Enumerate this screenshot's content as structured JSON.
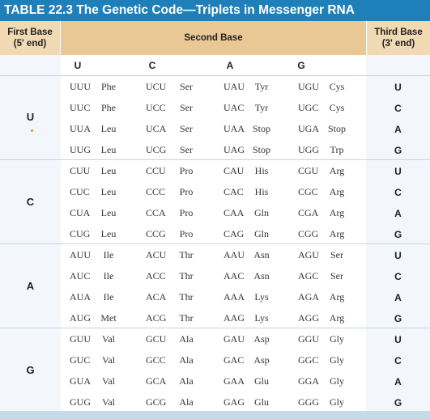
{
  "title": "TABLE 22.3  The Genetic Code—Triplets in Messenger RNA",
  "headers": {
    "first_line1": "First Base",
    "first_line2": "(5' end)",
    "second": "Second Base",
    "third_line1": "Third Base",
    "third_line2": "(3' end)"
  },
  "second_bases": [
    "U",
    "C",
    "A",
    "G"
  ],
  "third_bases": [
    "U",
    "C",
    "A",
    "G"
  ],
  "groups": [
    {
      "first": "U",
      "rows": [
        [
          [
            "UUU",
            "Phe"
          ],
          [
            "UCU",
            "Ser"
          ],
          [
            "UAU",
            "Tyr"
          ],
          [
            "UGU",
            "Cys"
          ]
        ],
        [
          [
            "UUC",
            "Phe"
          ],
          [
            "UCC",
            "Ser"
          ],
          [
            "UAC",
            "Tyr"
          ],
          [
            "UGC",
            "Cys"
          ]
        ],
        [
          [
            "UUA",
            "Leu"
          ],
          [
            "UCA",
            "Ser"
          ],
          [
            "UAA",
            "Stop"
          ],
          [
            "UGA",
            "Stop"
          ]
        ],
        [
          [
            "UUG",
            "Leu"
          ],
          [
            "UCG",
            "Ser"
          ],
          [
            "UAG",
            "Stop"
          ],
          [
            "UGG",
            "Trp"
          ]
        ]
      ]
    },
    {
      "first": "C",
      "rows": [
        [
          [
            "CUU",
            "Leu"
          ],
          [
            "CCU",
            "Pro"
          ],
          [
            "CAU",
            "His"
          ],
          [
            "CGU",
            "Arg"
          ]
        ],
        [
          [
            "CUC",
            "Leu"
          ],
          [
            "CCC",
            "Pro"
          ],
          [
            "CAC",
            "His"
          ],
          [
            "CGC",
            "Arg"
          ]
        ],
        [
          [
            "CUA",
            "Leu"
          ],
          [
            "CCA",
            "Pro"
          ],
          [
            "CAA",
            "Gln"
          ],
          [
            "CGA",
            "Arg"
          ]
        ],
        [
          [
            "CUG",
            "Leu"
          ],
          [
            "CCG",
            "Pro"
          ],
          [
            "CAG",
            "Gln"
          ],
          [
            "CGG",
            "Arg"
          ]
        ]
      ]
    },
    {
      "first": "A",
      "rows": [
        [
          [
            "AUU",
            "Ile"
          ],
          [
            "ACU",
            "Thr"
          ],
          [
            "AAU",
            "Asn"
          ],
          [
            "AGU",
            "Ser"
          ]
        ],
        [
          [
            "AUC",
            "Ile"
          ],
          [
            "ACC",
            "Thr"
          ],
          [
            "AAC",
            "Asn"
          ],
          [
            "AGC",
            "Ser"
          ]
        ],
        [
          [
            "AUA",
            "Ile"
          ],
          [
            "ACA",
            "Thr"
          ],
          [
            "AAA",
            "Lys"
          ],
          [
            "AGA",
            "Arg"
          ]
        ],
        [
          [
            "AUG",
            "Met"
          ],
          [
            "ACG",
            "Thr"
          ],
          [
            "AAG",
            "Lys"
          ],
          [
            "AGG",
            "Arg"
          ]
        ]
      ]
    },
    {
      "first": "G",
      "rows": [
        [
          [
            "GUU",
            "Val"
          ],
          [
            "GCU",
            "Ala"
          ],
          [
            "GAU",
            "Asp"
          ],
          [
            "GGU",
            "Gly"
          ]
        ],
        [
          [
            "GUC",
            "Val"
          ],
          [
            "GCC",
            "Ala"
          ],
          [
            "GAC",
            "Asp"
          ],
          [
            "GGC",
            "Gly"
          ]
        ],
        [
          [
            "GUA",
            "Val"
          ],
          [
            "GCA",
            "Ala"
          ],
          [
            "GAA",
            "Glu"
          ],
          [
            "GGA",
            "Gly"
          ]
        ],
        [
          [
            "GUG",
            "Val"
          ],
          [
            "GCG",
            "Ala"
          ],
          [
            "GAG",
            "Glu"
          ],
          [
            "GGG",
            "Gly"
          ]
        ]
      ]
    }
  ],
  "colors": {
    "title_bg": "#1f7fb8",
    "header_bg": "#e9c896",
    "side_bg": "#f3f6fb",
    "divider": "#c9d4e3"
  }
}
